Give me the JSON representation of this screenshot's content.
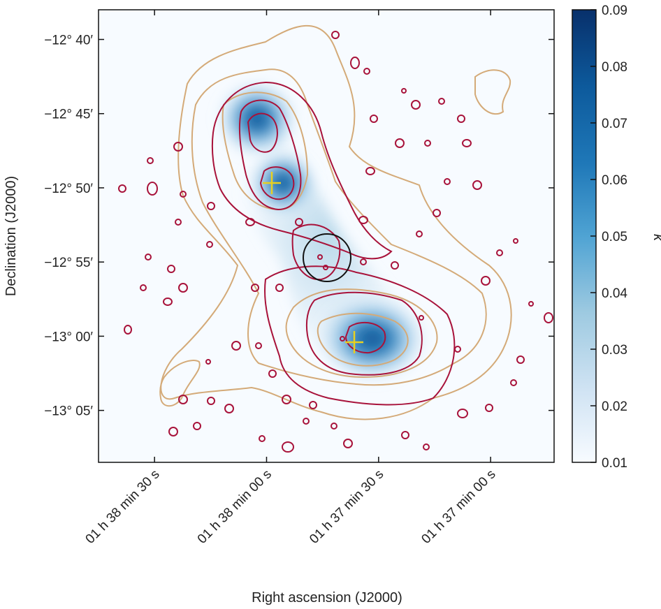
{
  "chart_data": {
    "type": "heatmap",
    "xlabel": "Right ascension (J2000)",
    "ylabel": "Declination (J2000)",
    "colorbar_label": "κ",
    "x_ticks": [
      "01 h 38 min 30 s",
      "01 h 38 min 00 s",
      "01 h 37 min 30 s",
      "01 h 37 min 00 s"
    ],
    "x_tick_seconds": [
      5910,
      5880,
      5850,
      5820
    ],
    "xlim_seconds": [
      5925,
      5803
    ],
    "y_ticks": [
      "−12° 40′",
      "−12° 45′",
      "−12° 50′",
      "−12° 55′",
      "−13° 00′",
      "−13° 05′"
    ],
    "y_tick_arcmin": [
      -760,
      -765,
      -770,
      -775,
      -780,
      -785
    ],
    "ylim_arcmin": [
      -788.5,
      -758
    ],
    "colorbar_ticks": [
      "0.09",
      "0.08",
      "0.07",
      "0.06",
      "0.05",
      "0.04",
      "0.03",
      "0.02",
      "0.01"
    ],
    "colorbar_values": [
      0.09,
      0.08,
      0.07,
      0.06,
      0.05,
      0.04,
      0.03,
      0.02,
      0.01
    ],
    "clim": [
      0.01,
      0.09
    ],
    "colormap": [
      "#f7fbff",
      "#d0e3f3",
      "#9ecae1",
      "#4fa3d3",
      "#1f78b8",
      "#0d5a9c",
      "#08306b"
    ],
    "kappa_peaks": [
      {
        "ra_s": 5883.5,
        "dec_arcmin": -765.0,
        "peak": 0.09
      },
      {
        "ra_s": 5876.0,
        "dec_arcmin": -769.5,
        "peak": 0.08
      },
      {
        "ra_s": 5852.0,
        "dec_arcmin": -779.5,
        "peak": 0.09
      },
      {
        "ra_s": 5868.5,
        "dec_arcmin": -773.5,
        "peak": 0.035
      }
    ],
    "markers": [
      {
        "name": "cross",
        "ra_s": 5879.5,
        "dec_arcmin": -769.6,
        "color": "#e8d020"
      },
      {
        "name": "cross",
        "ra_s": 5856.5,
        "dec_arcmin": -779.9,
        "color": "#e8d020"
      },
      {
        "name": "circle",
        "ra_s": 5866.5,
        "dec_arcmin": -774.3,
        "radius_arcmin": 1.5,
        "color": "#111111"
      }
    ],
    "contour_colors": {
      "tan": "#d4aa78",
      "crimson": "#a8123a"
    }
  }
}
